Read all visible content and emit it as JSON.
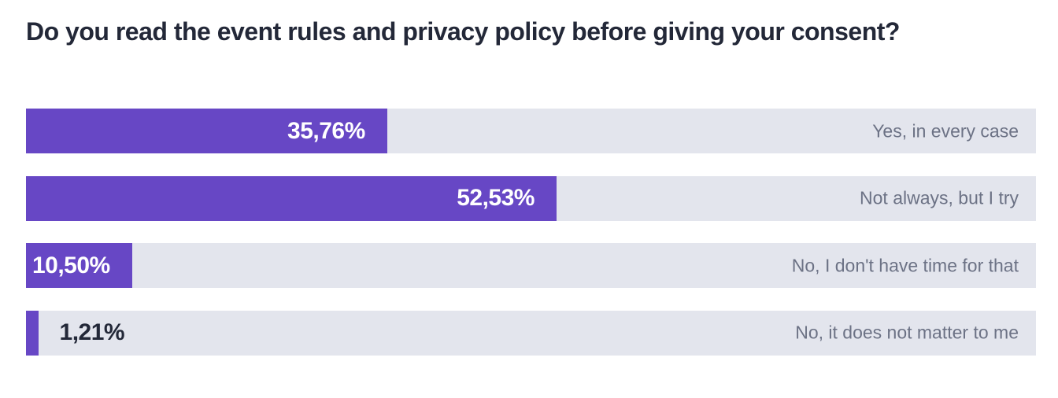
{
  "title": "Do you read the event rules and privacy policy before giving your consent?",
  "colors": {
    "bar_fill": "#6747c5",
    "bar_track": "#e3e5ed",
    "title_text": "#232838",
    "category_text": "#6c7285",
    "value_label_inside": "#ffffff",
    "value_label_outside": "#232838"
  },
  "chart_data": {
    "type": "bar",
    "orientation": "horizontal",
    "title": "Do you read the event rules and privacy policy before giving your consent?",
    "xlabel": "",
    "ylabel": "",
    "xlim": [
      0,
      100
    ],
    "grid": false,
    "legend": false,
    "unit": "percent",
    "categories": [
      "Yes, in every case",
      "Not always, but I try",
      "No, I don't have time for that",
      "No, it does not matter to me"
    ],
    "values": [
      35.76,
      52.53,
      10.5,
      1.21
    ],
    "value_labels": [
      "35,76%",
      "52,53%",
      "10,50%",
      "1,21%"
    ],
    "value_label_position": [
      "inside-end",
      "inside-end",
      "inside-end",
      "outside-end"
    ],
    "category_label_position": "right-aligned-on-track"
  }
}
